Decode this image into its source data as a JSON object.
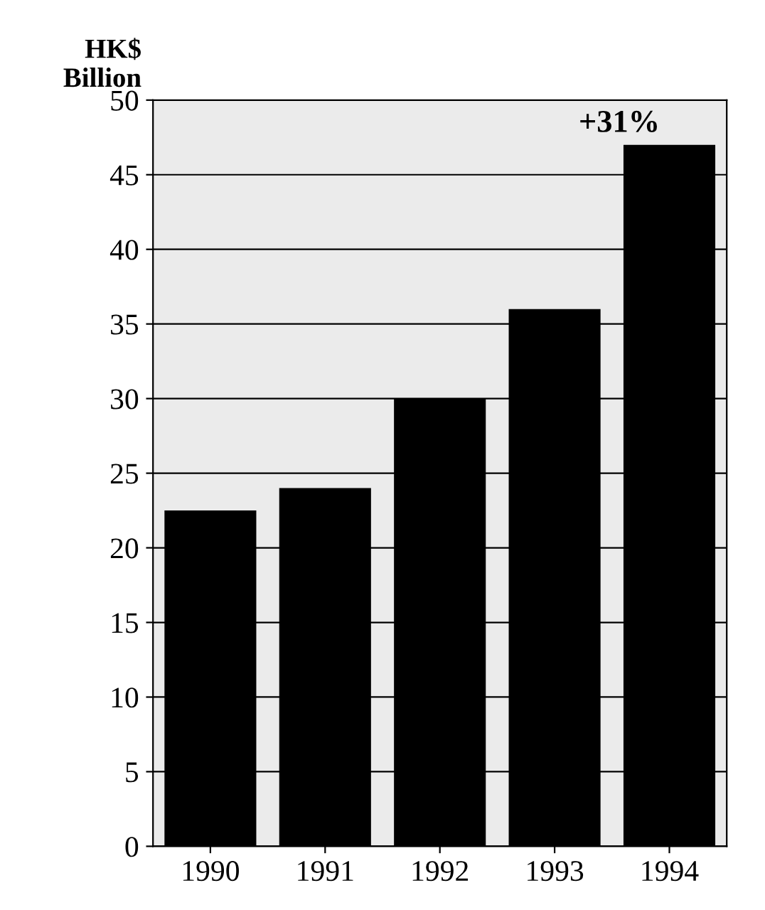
{
  "chart_data": {
    "type": "bar",
    "ylabel": "HK$\nBillion",
    "categories": [
      "1990",
      "1991",
      "1992",
      "1993",
      "1994"
    ],
    "values": [
      22.5,
      24,
      30,
      36,
      47
    ],
    "color": "#000000",
    "ylim": [
      0,
      50
    ],
    "yticks": [
      0,
      5,
      10,
      15,
      20,
      25,
      30,
      35,
      40,
      45,
      50
    ],
    "grid": "y",
    "annotations": [
      {
        "text": "+31%",
        "x": "1994",
        "y": 47
      }
    ]
  }
}
